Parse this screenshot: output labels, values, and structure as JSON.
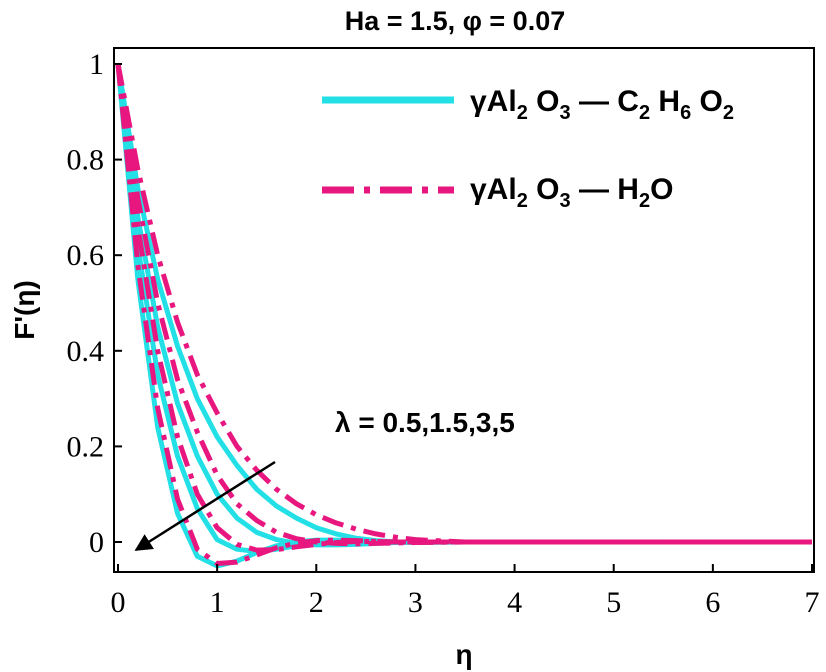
{
  "chart_data": {
    "type": "line",
    "title": "Ha = 1.5, φ = 0.07",
    "xlabel": "η",
    "ylabel": "F'(η)",
    "xlim": [
      0,
      7
    ],
    "ylim": [
      -0.05,
      1.0
    ],
    "xticks": [
      "0",
      "1",
      "2",
      "3",
      "4",
      "5",
      "6",
      "7"
    ],
    "yticks": [
      "0",
      "0.2",
      "0.4",
      "0.6",
      "0.8",
      "1"
    ],
    "legend_position": "top-right",
    "legend": [
      {
        "prefix": "γAl",
        "parts": [
          [
            "2",
            " O"
          ],
          [
            "3",
            " — C"
          ],
          [
            "2",
            " H"
          ],
          [
            "6",
            " O"
          ],
          [
            "2",
            ""
          ]
        ],
        "color": "#22e0e6",
        "style": "solid"
      },
      {
        "prefix": "γAl",
        "parts": [
          [
            "2",
            " O"
          ],
          [
            "3",
            " — H"
          ],
          [
            "2",
            "O"
          ]
        ],
        "color": "#e8177f",
        "style": "dashdot"
      }
    ],
    "annotation": "λ = 0.5,1.5,3,5",
    "series": [
      {
        "group": "γAl2O3 — C2H6O2",
        "lambda": 0.5,
        "color": "#22e0e6",
        "style": "solid",
        "x": [
          0,
          0.2,
          0.4,
          0.6,
          0.8,
          1.0,
          1.2,
          1.4,
          1.6,
          1.8,
          2.0,
          2.2,
          2.4,
          2.6,
          2.8,
          3.0,
          3.5,
          4.0,
          5.0,
          6.0,
          7.0
        ],
        "y": [
          1.0,
          0.74,
          0.55,
          0.41,
          0.3,
          0.22,
          0.16,
          0.11,
          0.075,
          0.05,
          0.03,
          0.017,
          0.008,
          0.003,
          0.0,
          -0.001,
          0.0,
          0.0,
          0.0,
          0.0,
          0.0
        ]
      },
      {
        "group": "γAl2O3 — C2H6O2",
        "lambda": 1.5,
        "color": "#22e0e6",
        "style": "solid",
        "x": [
          0,
          0.2,
          0.4,
          0.6,
          0.8,
          1.0,
          1.2,
          1.4,
          1.6,
          1.8,
          2.0,
          2.2,
          2.4,
          2.6,
          2.8,
          3.0,
          3.5,
          4.0,
          5.0,
          6.0,
          7.0
        ],
        "y": [
          1.0,
          0.68,
          0.45,
          0.29,
          0.18,
          0.1,
          0.05,
          0.02,
          0.005,
          -0.003,
          -0.006,
          -0.006,
          -0.005,
          -0.003,
          -0.001,
          0.0,
          0.0,
          0.0,
          0.0,
          0.0,
          0.0
        ]
      },
      {
        "group": "γAl2O3 — C2H6O2",
        "lambda": 3,
        "color": "#22e0e6",
        "style": "solid",
        "x": [
          0,
          0.2,
          0.4,
          0.6,
          0.8,
          1.0,
          1.2,
          1.4,
          1.6,
          1.8,
          2.0,
          2.2,
          2.4,
          2.6,
          2.8,
          3.0,
          3.5,
          4.0,
          5.0,
          6.0,
          7.0
        ],
        "y": [
          1.0,
          0.62,
          0.35,
          0.18,
          0.07,
          0.005,
          -0.015,
          -0.02,
          -0.015,
          -0.008,
          -0.003,
          0.0,
          0.001,
          0.001,
          0.0,
          0.0,
          0.0,
          0.0,
          0.0,
          0.0,
          0.0
        ]
      },
      {
        "group": "γAl2O3 — C2H6O2",
        "lambda": 5,
        "color": "#22e0e6",
        "style": "solid",
        "x": [
          0,
          0.2,
          0.4,
          0.6,
          0.8,
          1.0,
          1.2,
          1.4,
          1.6,
          1.8,
          2.0,
          2.2,
          2.4,
          2.6,
          2.8,
          3.0,
          3.5,
          4.0,
          5.0,
          6.0,
          7.0
        ],
        "y": [
          1.0,
          0.55,
          0.24,
          0.06,
          -0.03,
          -0.05,
          -0.04,
          -0.022,
          -0.008,
          0.0,
          0.004,
          0.004,
          0.002,
          0.001,
          0.0,
          0.0,
          0.0,
          0.0,
          0.0,
          0.0,
          0.0
        ]
      },
      {
        "group": "γAl2O3 — H2O",
        "lambda": 0.5,
        "color": "#e8177f",
        "style": "dashdot",
        "x": [
          0,
          0.2,
          0.4,
          0.6,
          0.8,
          1.0,
          1.2,
          1.4,
          1.6,
          1.8,
          2.0,
          2.2,
          2.4,
          2.6,
          2.8,
          3.0,
          3.5,
          4.0,
          5.0,
          6.0,
          7.0
        ],
        "y": [
          1.0,
          0.78,
          0.6,
          0.46,
          0.35,
          0.27,
          0.2,
          0.15,
          0.11,
          0.08,
          0.057,
          0.04,
          0.027,
          0.017,
          0.01,
          0.005,
          0.0,
          0.0,
          0.0,
          0.0,
          0.0
        ]
      },
      {
        "group": "γAl2O3 — H2O",
        "lambda": 1.5,
        "color": "#e8177f",
        "style": "dashdot",
        "x": [
          0,
          0.2,
          0.4,
          0.6,
          0.8,
          1.0,
          1.2,
          1.4,
          1.6,
          1.8,
          2.0,
          2.2,
          2.4,
          2.6,
          2.8,
          3.0,
          3.5,
          4.0,
          5.0,
          6.0,
          7.0
        ],
        "y": [
          1.0,
          0.72,
          0.5,
          0.34,
          0.23,
          0.14,
          0.08,
          0.045,
          0.02,
          0.007,
          0.0,
          -0.003,
          -0.004,
          -0.003,
          -0.002,
          -0.001,
          0.0,
          0.0,
          0.0,
          0.0,
          0.0
        ]
      },
      {
        "group": "γAl2O3 — H2O",
        "lambda": 3,
        "color": "#e8177f",
        "style": "dashdot",
        "x": [
          0,
          0.2,
          0.4,
          0.6,
          0.8,
          1.0,
          1.2,
          1.4,
          1.6,
          1.8,
          2.0,
          2.2,
          2.4,
          2.6,
          2.8,
          3.0,
          3.5,
          4.0,
          5.0,
          6.0,
          7.0
        ],
        "y": [
          1.0,
          0.66,
          0.4,
          0.22,
          0.1,
          0.03,
          -0.005,
          -0.017,
          -0.016,
          -0.01,
          -0.005,
          -0.001,
          0.001,
          0.001,
          0.0,
          0.0,
          0.0,
          0.0,
          0.0,
          0.0,
          0.0
        ]
      },
      {
        "group": "γAl2O3 — H2O",
        "lambda": 5,
        "color": "#e8177f",
        "style": "dashdot",
        "x": [
          0,
          0.2,
          0.4,
          0.6,
          0.8,
          1.0,
          1.2,
          1.4,
          1.6,
          1.8,
          2.0,
          2.2,
          2.4,
          2.6,
          2.8,
          3.0,
          3.5,
          4.0,
          5.0,
          6.0,
          7.0
        ],
        "y": [
          1.0,
          0.58,
          0.28,
          0.09,
          -0.015,
          -0.045,
          -0.042,
          -0.027,
          -0.012,
          -0.002,
          0.003,
          0.004,
          0.003,
          0.001,
          0.0,
          0.0,
          0.0,
          0.0,
          0.0,
          0.0,
          0.0
        ]
      }
    ]
  }
}
